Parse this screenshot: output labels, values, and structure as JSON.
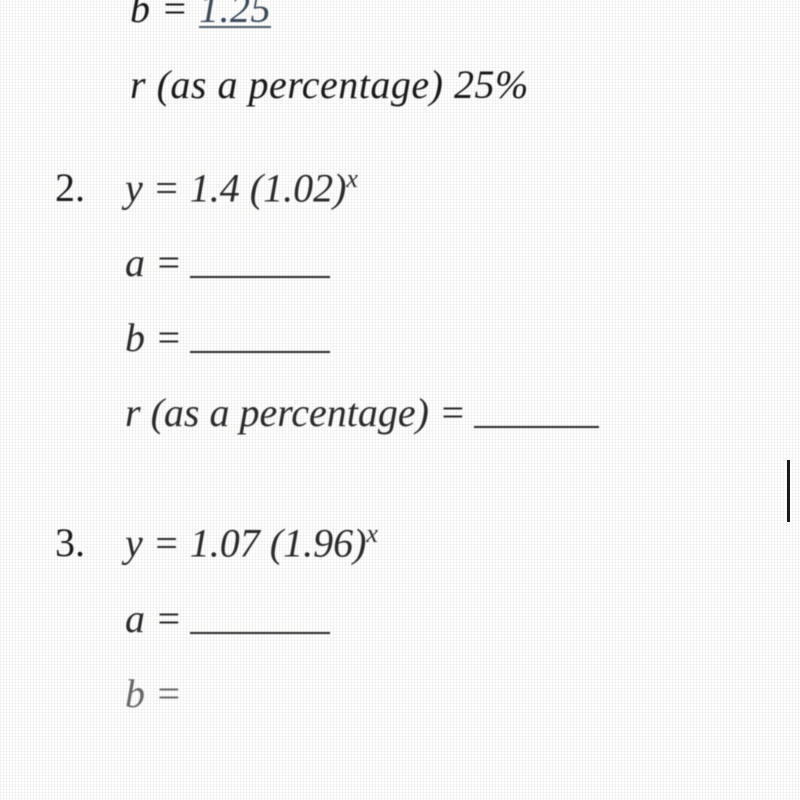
{
  "background_color": "#d6dacd",
  "text_color": "#1a1a1a",
  "font_family": "Georgia, serif",
  "font_size_main": 40,
  "font_size_superscript": 26,
  "partial_top": {
    "b_label": "b",
    "b_equals": "=",
    "b_value": "1.25",
    "r_line": "r (as a percentage) 25%"
  },
  "problem2": {
    "number": "2.",
    "equation_var": "y",
    "equation_eq": " = ",
    "equation_a": "1.4 ",
    "equation_open": "(",
    "equation_b": "1.02",
    "equation_close": ")",
    "equation_exp": "x",
    "a_label": "a = ",
    "b_label": "b = ",
    "r_label": "r (as a percentage) = "
  },
  "problem3": {
    "number": "3.",
    "equation_var": "y",
    "equation_eq": " = ",
    "equation_a": "1.07 ",
    "equation_open": "(",
    "equation_b": "1.96",
    "equation_close": ")",
    "equation_exp": "x",
    "a_label": "a = ",
    "b_label": "b = "
  }
}
